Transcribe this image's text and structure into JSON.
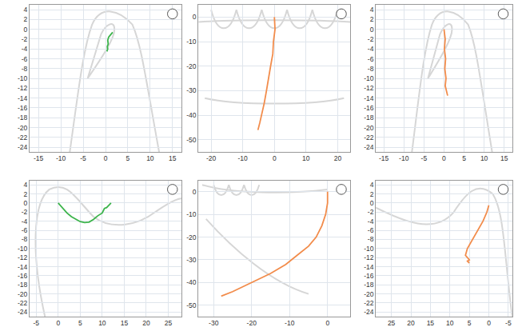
{
  "chart_data": [
    {
      "type": "line",
      "color": "#3cb44b",
      "grid": true,
      "x": [
        1.6,
        1.3,
        0.9,
        0.7,
        0.5,
        0.6,
        0.4,
        0.5,
        0.3
      ],
      "values": [
        -0.6,
        -0.9,
        -1.3,
        -1.6,
        -2.2,
        -3.0,
        -3.5,
        -4.0,
        -4.5
      ],
      "xlim": [
        -17,
        17
      ],
      "xticks": [
        -15,
        -10,
        -5,
        0,
        5,
        10,
        15
      ],
      "ylim": [
        -25,
        5
      ],
      "yticks": [
        4,
        2,
        0,
        -2,
        -4,
        -6,
        -8,
        -10,
        -12,
        -14,
        -16,
        -18,
        -20,
        -22,
        -24
      ]
    },
    {
      "type": "line",
      "color": "#f28c4b",
      "grid": true,
      "x": [
        0,
        0.2,
        -0.3,
        -0.5,
        -1.2,
        -1.8,
        -2.5,
        -3.2,
        -4,
        -4.6,
        -5.2
      ],
      "values": [
        0,
        -5,
        -10,
        -15,
        -20,
        -25,
        -30,
        -35,
        -40,
        -43,
        -46
      ],
      "xlim": [
        -24,
        24
      ],
      "xticks": [
        -20,
        -10,
        0,
        10,
        20
      ],
      "ylim": [
        -55,
        5
      ],
      "yticks": [
        0,
        -10,
        -20,
        -30,
        -40,
        -50
      ]
    },
    {
      "type": "line",
      "color": "#f28c4b",
      "grid": true,
      "x": [
        0,
        0.3,
        0.1,
        0.4,
        0.2,
        0.5,
        0.3,
        0.6,
        0.9
      ],
      "values": [
        0,
        -2,
        -4,
        -6,
        -8,
        -10,
        -11.5,
        -12.5,
        -13.5
      ],
      "xlim": [
        -17,
        17
      ],
      "xticks": [
        -15,
        -10,
        -5,
        0,
        5,
        10,
        15
      ],
      "ylim": [
        -25,
        5
      ],
      "yticks": [
        4,
        2,
        0,
        -2,
        -4,
        -6,
        -8,
        -10,
        -12,
        -14,
        -16,
        -18,
        -20,
        -22,
        -24
      ]
    },
    {
      "type": "line",
      "color": "#3cb44b",
      "grid": true,
      "x": [
        0,
        1,
        2,
        3,
        4,
        5,
        6,
        7,
        8,
        9,
        10,
        10.5,
        11,
        12
      ],
      "values": [
        0,
        -1.2,
        -2.2,
        -3,
        -3.6,
        -4.1,
        -4.3,
        -4.2,
        -3.6,
        -2.8,
        -2.2,
        -1.2,
        -1,
        0
      ],
      "xlim": [
        -6.5,
        28
      ],
      "xticks": [
        -5,
        0,
        5,
        10,
        15,
        20,
        25
      ],
      "ylim": [
        -25,
        5
      ],
      "yticks": [
        4,
        2,
        0,
        -2,
        -4,
        -6,
        -8,
        -10,
        -12,
        -14,
        -16,
        -18,
        -20,
        -22,
        -24
      ]
    },
    {
      "type": "line",
      "color": "#f28c4b",
      "grid": true,
      "x": [
        0,
        0,
        -0.5,
        -1.5,
        -3,
        -5,
        -8,
        -11,
        -15,
        -20,
        -25,
        -28
      ],
      "values": [
        0,
        -5,
        -10,
        -15,
        -20,
        -24,
        -28,
        -32,
        -36,
        -40,
        -44,
        -46
      ],
      "xlim": [
        -34,
        6
      ],
      "xticks": [
        -30,
        -20,
        -10,
        0
      ],
      "ylim": [
        -55,
        5
      ],
      "yticks": [
        0,
        -10,
        -20,
        -30,
        -40,
        -50
      ]
    },
    {
      "type": "line",
      "color": "#f28c4b",
      "grid": true,
      "x": [
        0,
        0.5,
        1.5,
        2.5,
        3.5,
        4.5,
        5.5,
        6,
        5,
        5.5,
        5
      ],
      "values": [
        -0.5,
        -2,
        -4,
        -5.5,
        -7,
        -8.5,
        -10,
        -11.5,
        -12.5,
        -12.8,
        -13.2
      ],
      "xlim": [
        29,
        -6
      ],
      "xticks": [
        25,
        20,
        15,
        10,
        5,
        0,
        -5
      ],
      "ylim": [
        -25,
        5
      ],
      "yticks": [
        4,
        2,
        0,
        -2,
        -4,
        -6,
        -8,
        -10,
        -12,
        -14,
        -16,
        -18,
        -20,
        -22,
        -24
      ]
    }
  ]
}
